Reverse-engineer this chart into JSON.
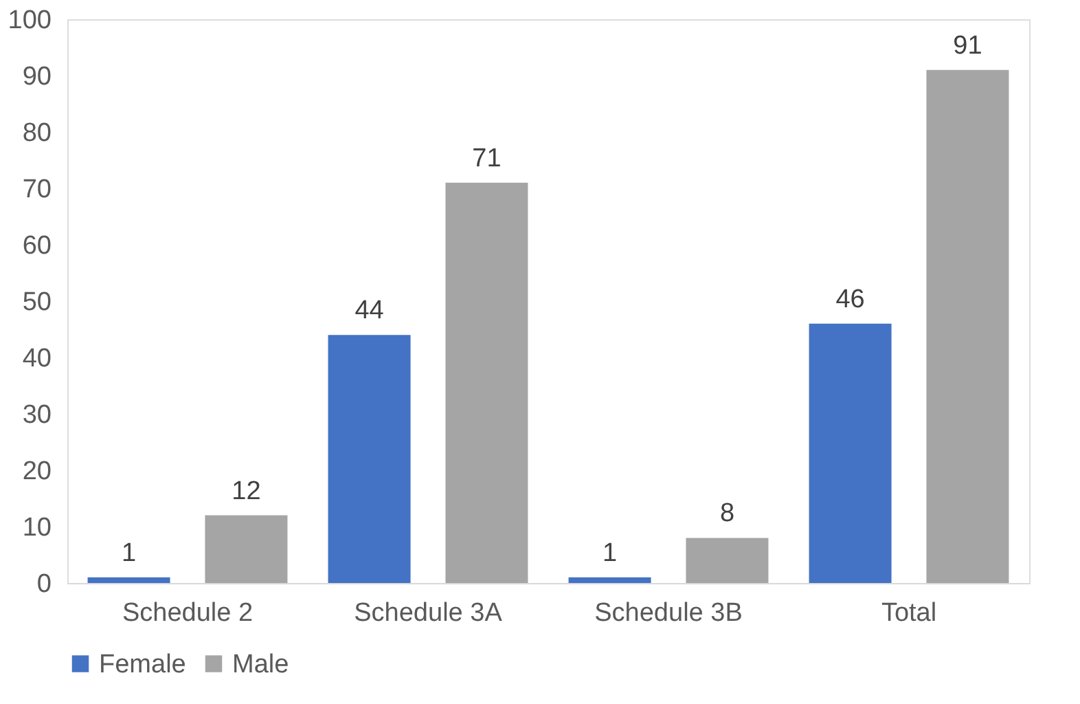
{
  "chart_data": {
    "type": "bar",
    "categories": [
      "Schedule 2",
      "Schedule 3A",
      "Schedule 3B",
      "Total"
    ],
    "series": [
      {
        "name": "Female",
        "color": "#4472c4",
        "values": [
          1,
          44,
          1,
          46
        ]
      },
      {
        "name": "Male",
        "color": "#a5a5a5",
        "values": [
          12,
          71,
          8,
          91
        ]
      }
    ],
    "ylim": [
      0,
      100
    ],
    "yticks": [
      0,
      10,
      20,
      30,
      40,
      50,
      60,
      70,
      80,
      90,
      100
    ],
    "data_labels": true,
    "grid": false,
    "legend": "bottom"
  }
}
